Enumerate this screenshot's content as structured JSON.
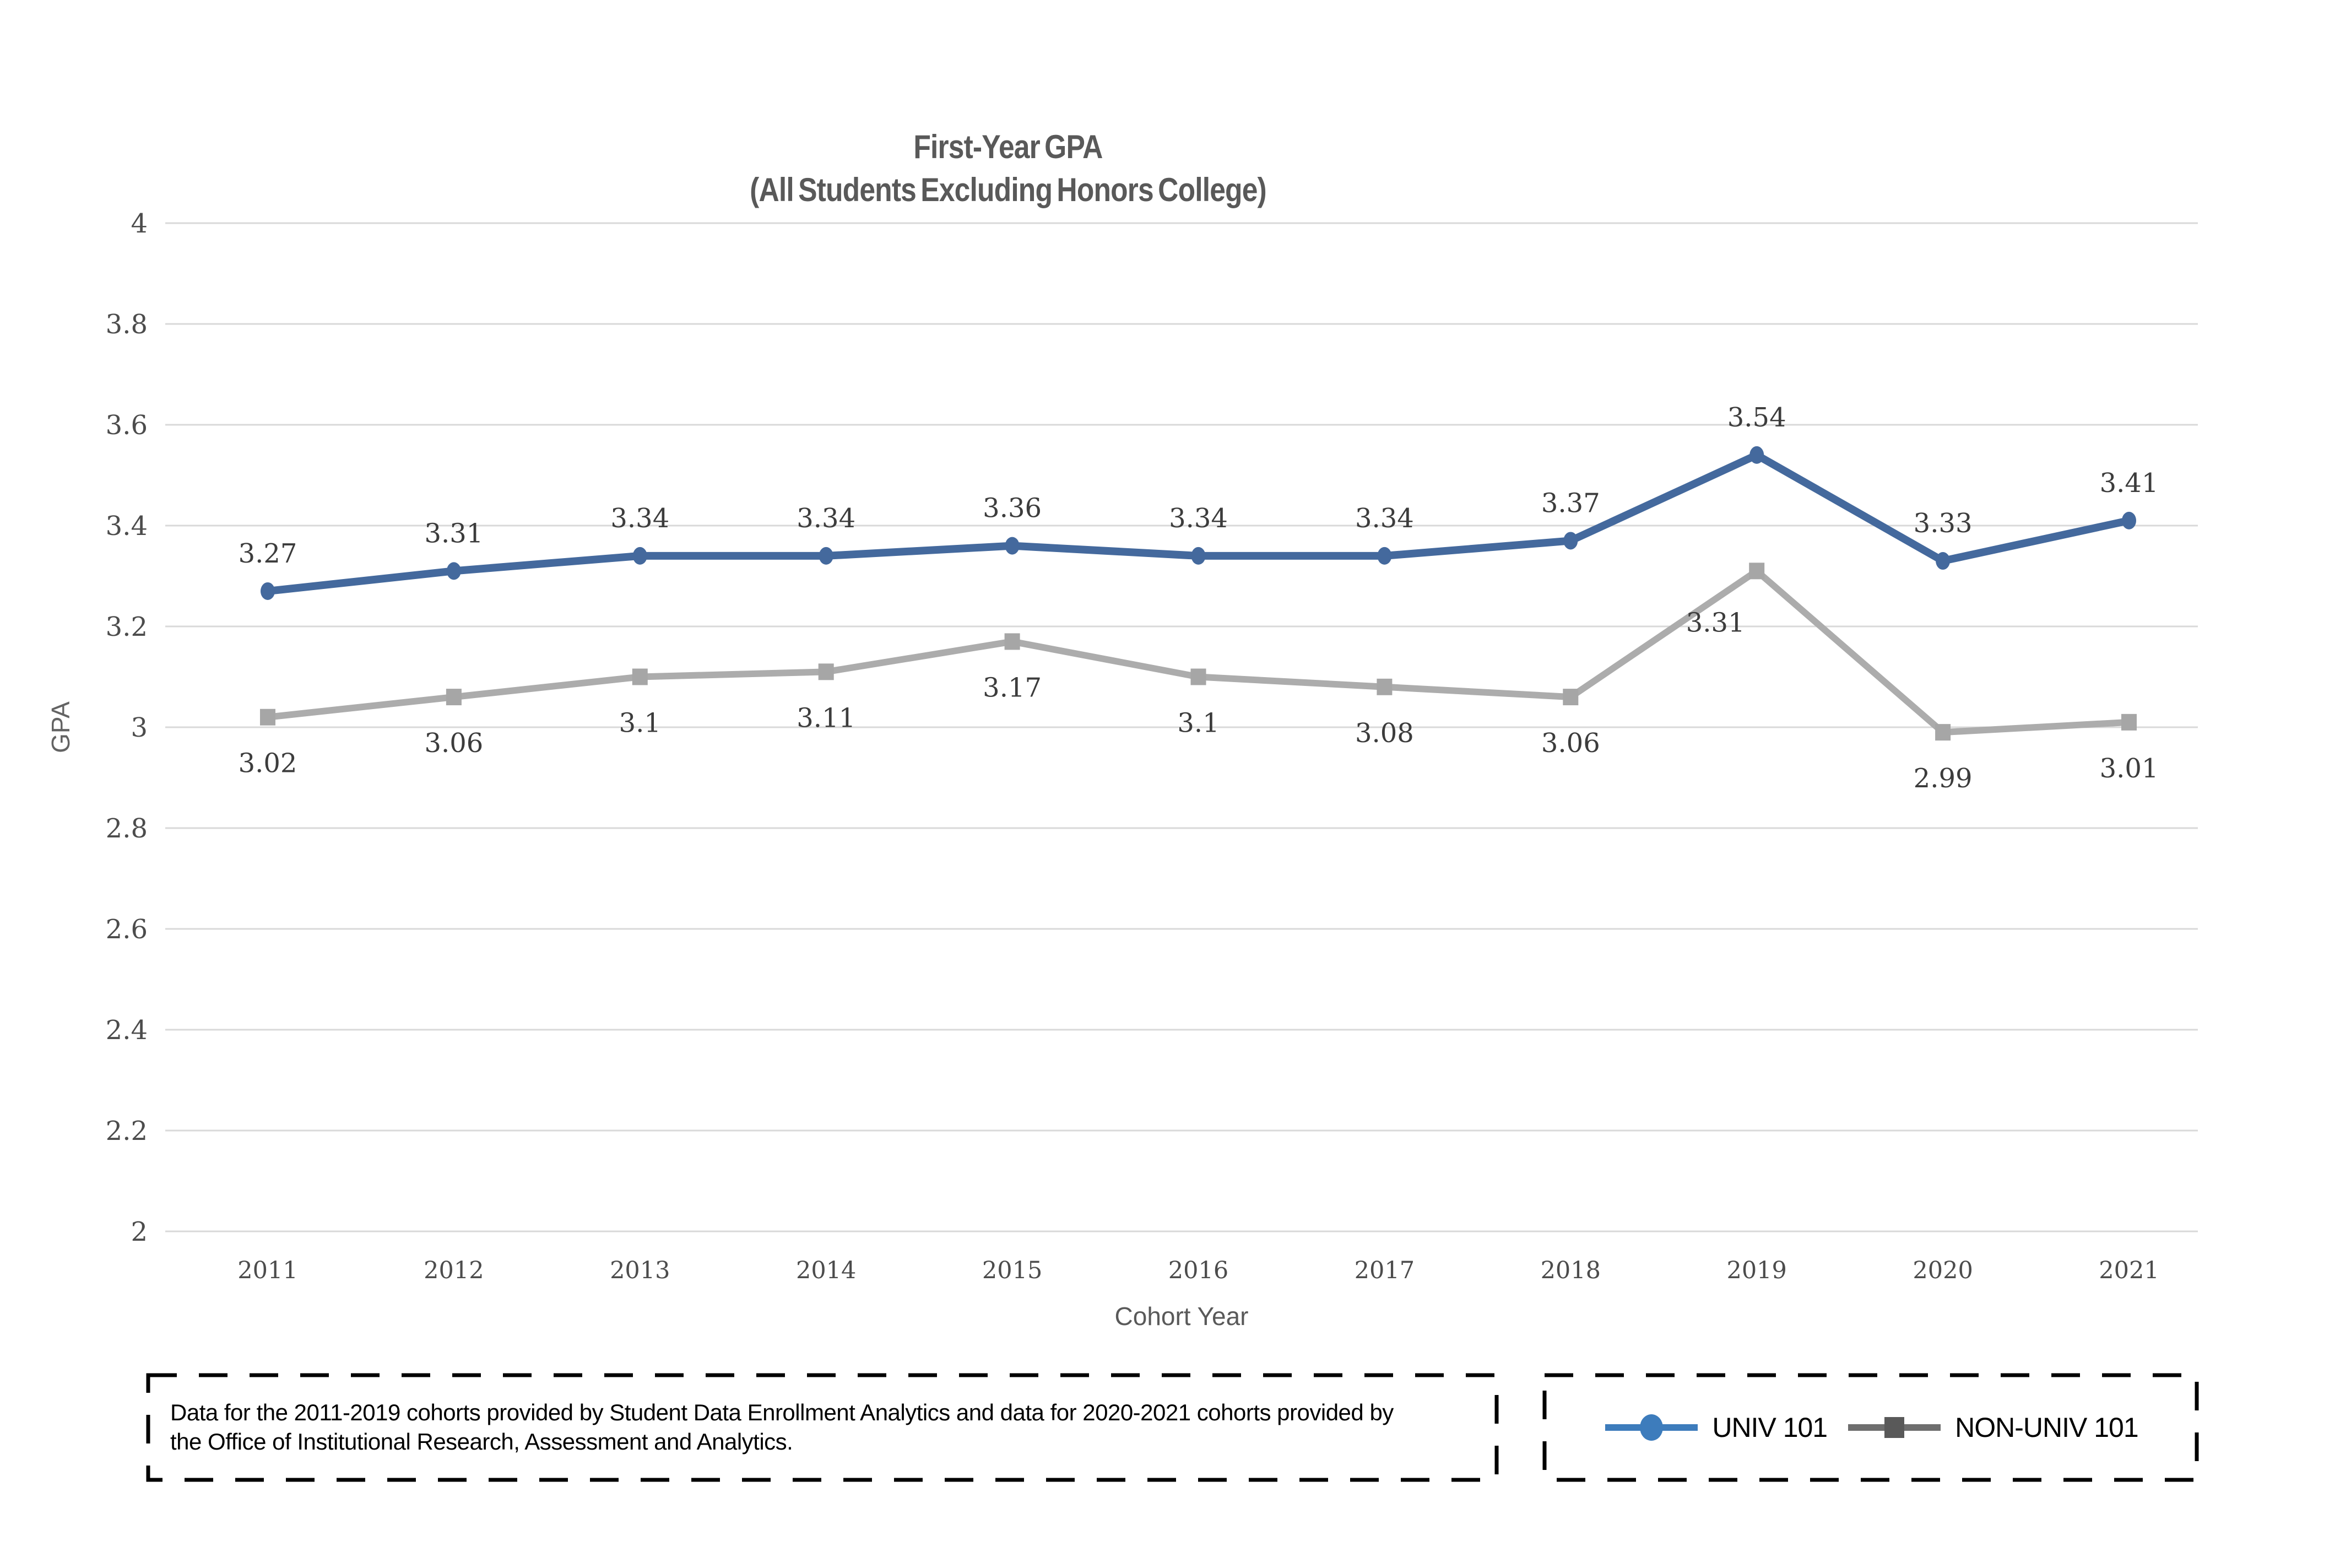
{
  "page": {
    "background": "#FFFFFF"
  },
  "chart_data": {
    "type": "line",
    "title": "First-Year GPA",
    "subtitle": "(All Students Excluding Honors College)",
    "xlabel": "Cohort Year",
    "ylabel": "GPA",
    "categories": [
      "2011",
      "2012",
      "2013",
      "2014",
      "2015",
      "2016",
      "2017",
      "2018",
      "2019",
      "2020",
      "2021"
    ],
    "ylim": [
      2,
      4
    ],
    "grid": true,
    "legend_position": "bottom-right",
    "yticks": {
      "values": [
        2,
        2.2,
        2.4,
        2.6,
        2.8,
        3,
        3.2,
        3.4,
        3.6,
        3.8,
        4
      ],
      "labels": [
        "2",
        "2.2",
        "2.4",
        "2.6",
        "2.8",
        "3",
        "3.2",
        "3.4",
        "3.6",
        "3.8",
        "4"
      ]
    },
    "series": [
      {
        "name": "UNIV 101",
        "marker": "circle",
        "line_color": "#44699D",
        "marker_color": "#44699D",
        "legend_line_color": "#3D7CBC",
        "legend_marker_color": "#3D7CBC",
        "label_position": "above",
        "values": [
          3.27,
          3.31,
          3.34,
          3.34,
          3.36,
          3.34,
          3.34,
          3.37,
          3.54,
          3.33,
          3.41
        ],
        "labels": [
          "3.27",
          "3.31",
          "3.34",
          "3.34",
          "3.36",
          "3.34",
          "3.34",
          "3.37",
          "3.54",
          "3.33",
          "3.41"
        ],
        "label_offsets": {}
      },
      {
        "name": "NON-UNIV 101",
        "marker": "square",
        "line_color": "#ACACAC",
        "marker_color": "#A6A6A6",
        "legend_line_color": "#6E6E6E",
        "legend_marker_color": "#595959",
        "label_position": "below",
        "values": [
          3.02,
          3.06,
          3.1,
          3.11,
          3.17,
          3.1,
          3.08,
          3.06,
          3.31,
          2.99,
          3.01
        ],
        "labels": [
          "3.02",
          "3.06",
          "3.1",
          "3.11",
          "3.17",
          "3.1",
          "3.08",
          "3.06",
          "3.31",
          "2.99",
          "3.01"
        ],
        "label_offsets": {
          "8": [
            -75,
            10
          ]
        }
      }
    ]
  },
  "note": {
    "text": "Data for the 2011-2019 cohorts provided by Student Data Enrollment Analytics and data for 2020-2021 cohorts provided by the Office of Institutional Research, Assessment and Analytics."
  },
  "colors": {
    "grid": "#D9D9D9",
    "tick_text": "#4C4C4C",
    "data_label_text": "#3C3C3C",
    "title_text": "#595959",
    "axis_title_text": "#595959",
    "box_border": "#000000"
  }
}
